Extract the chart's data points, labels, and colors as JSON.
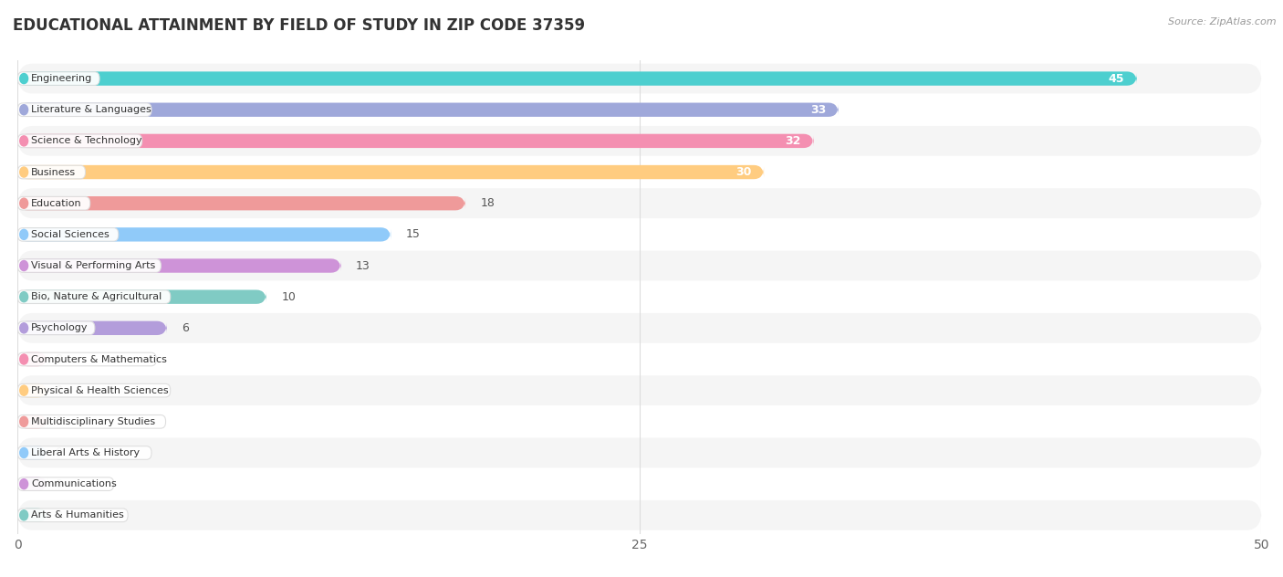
{
  "title": "EDUCATIONAL ATTAINMENT BY FIELD OF STUDY IN ZIP CODE 37359",
  "source": "Source: ZipAtlas.com",
  "categories": [
    "Engineering",
    "Literature & Languages",
    "Science & Technology",
    "Business",
    "Education",
    "Social Sciences",
    "Visual & Performing Arts",
    "Bio, Nature & Agricultural",
    "Psychology",
    "Computers & Mathematics",
    "Physical & Health Sciences",
    "Multidisciplinary Studies",
    "Liberal Arts & History",
    "Communications",
    "Arts & Humanities"
  ],
  "values": [
    45,
    33,
    32,
    30,
    18,
    15,
    13,
    10,
    6,
    0,
    0,
    0,
    0,
    0,
    0
  ],
  "bar_colors": [
    "#4DCFCF",
    "#9FA8DA",
    "#F48FB1",
    "#FFCC80",
    "#EF9A9A",
    "#90CAF9",
    "#CE93D8",
    "#80CBC4",
    "#B39DDB",
    "#F48FB1",
    "#FFCC80",
    "#EF9A9A",
    "#90CAF9",
    "#CE93D8",
    "#80CBC4"
  ],
  "value_inside_threshold": 30,
  "xlim": [
    0,
    50
  ],
  "xticks": [
    0,
    25,
    50
  ],
  "background_color": "#ffffff",
  "row_bg_even": "#f5f5f5",
  "row_bg_odd": "#ffffff",
  "title_fontsize": 12,
  "label_fontsize": 9,
  "tick_fontsize": 10
}
